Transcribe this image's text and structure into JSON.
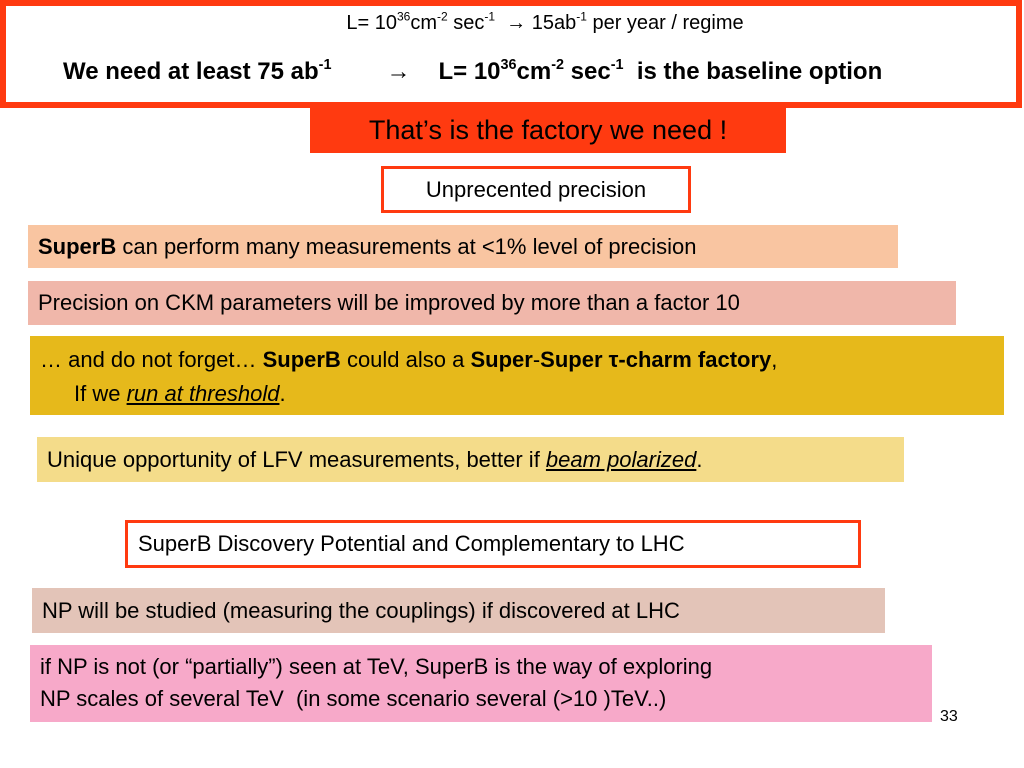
{
  "header": {
    "line1": {
      "a": "L= 10",
      "sup1": "36",
      "b": "cm",
      "sup2": "-2",
      "c": " sec",
      "sup3": "-1",
      "d": "  → 15ab",
      "sup4": "-1",
      "e": " per year / regime"
    },
    "line2": {
      "a": "We need at least 75 ab",
      "sup1": "-1",
      "arrow": "→",
      "b": "L= 10",
      "sup2": "36",
      "c": "cm",
      "sup3": "-2",
      "d": " sec",
      "sup4": "-1",
      "e": "  is the baseline option"
    }
  },
  "factory_banner": "That’s is the factory we need !",
  "unprecedented_label": "Unprecented precision",
  "box1": {
    "bold": "SuperB",
    "rest": " can perform many measurements at <1% level of precision"
  },
  "box2": "Precision on CKM parameters will be improved by more than a factor 10",
  "box3": {
    "a": "… and do not forget… ",
    "b": "SuperB",
    "c": " could also a ",
    "d": "Super",
    "e": "-",
    "f": "Super τ-charm factory",
    "g": ",",
    "h": "If we ",
    "i": "run at threshold",
    "j": "."
  },
  "box4": {
    "a": "Unique opportunity of LFV measurements, better if ",
    "b": "beam polarized",
    "c": "."
  },
  "discovery_label": "SuperB Discovery Potential and Complementary to LHC",
  "box5": "NP will be studied (measuring the couplings) if discovered at LHC",
  "box6": {
    "line1": "if NP is not (or “partially”) seen at TeV, SuperB is the way of exploring",
    "line2": "NP scales of several TeV  (in some scenario several (>10 )TeV..)"
  },
  "page_number": "33",
  "colors": {
    "accent": "#ff3a10",
    "peach": "#f9c5a1",
    "pink": "#f0b7aa",
    "gold": "#e6b91b",
    "pale_yellow": "#f4dc8a",
    "beige": "#e3c4b8",
    "rose": "#f7a9c9"
  }
}
